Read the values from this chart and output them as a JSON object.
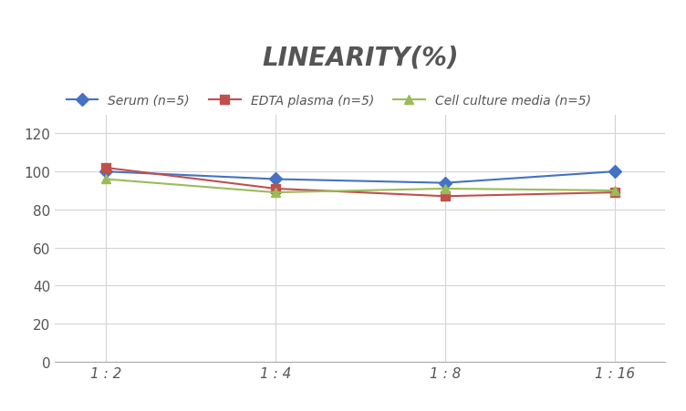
{
  "title": "LINEARITY(%)",
  "x_labels": [
    "1 : 2",
    "1 : 4",
    "1 : 8",
    "1 : 16"
  ],
  "x_positions": [
    0,
    1,
    2,
    3
  ],
  "series": [
    {
      "label": "Serum (n=5)",
      "values": [
        100,
        96,
        94,
        100
      ],
      "color": "#4472C4",
      "marker": "D",
      "markersize": 7,
      "linewidth": 1.5
    },
    {
      "label": "EDTA plasma (n=5)",
      "values": [
        102,
        91,
        87,
        89
      ],
      "color": "#C0504D",
      "marker": "s",
      "markersize": 7,
      "linewidth": 1.5
    },
    {
      "label": "Cell culture media (n=5)",
      "values": [
        96,
        89,
        91,
        90
      ],
      "color": "#9BBB59",
      "marker": "^",
      "markersize": 7,
      "linewidth": 1.5
    }
  ],
  "ylim": [
    0,
    130
  ],
  "yticks": [
    0,
    20,
    40,
    60,
    80,
    100,
    120
  ],
  "background_color": "#FFFFFF",
  "grid_color": "#D3D3D3",
  "title_fontsize": 20,
  "legend_fontsize": 10,
  "tick_fontsize": 11,
  "title_color": "#555555"
}
